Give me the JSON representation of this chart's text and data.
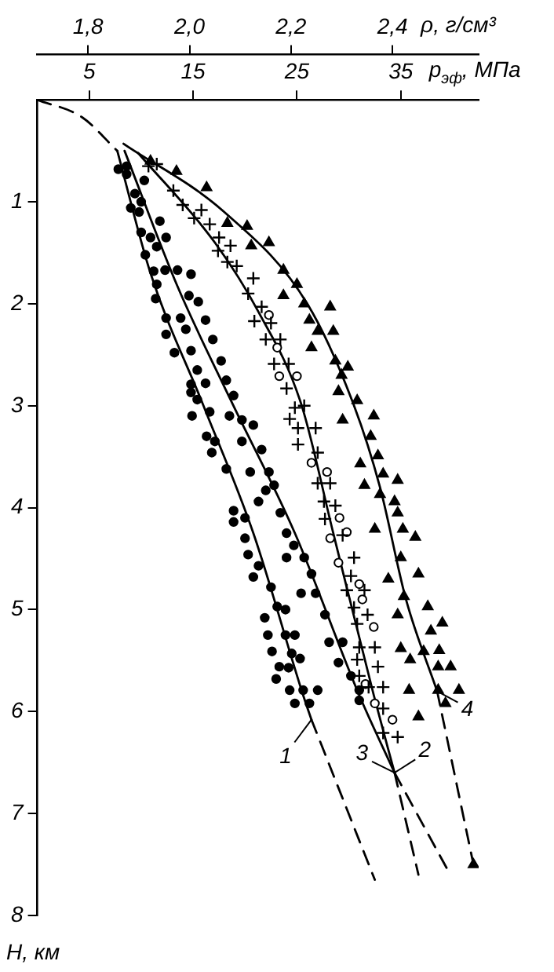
{
  "chart_data": {
    "type": "scatter",
    "xlabel": "p$_{эф}$, МПа",
    "x2label": "ρ, г/см³",
    "ylabel": "H, км",
    "xlim": [
      0,
      42.5
    ],
    "xticks": [
      5,
      15,
      25,
      35
    ],
    "x2lim": [
      1.7,
      2.57
    ],
    "x2ticks": [
      {
        "value": 1.8,
        "label": "1,8"
      },
      {
        "value": 2.0,
        "label": "2,0"
      },
      {
        "value": 2.2,
        "label": "2,2"
      },
      {
        "value": 2.4,
        "label": "2,4"
      }
    ],
    "ylim": [
      8,
      0
    ],
    "yticks": [
      1,
      2,
      3,
      4,
      5,
      6,
      7,
      8
    ],
    "grid": false,
    "legend": "bottom right",
    "series": [
      {
        "type": "scatter",
        "color": "#000000",
        "marker": "circle",
        "x": [
          7.8,
          8.6,
          9.4,
          9.0,
          9.8,
          10.0,
          10.9,
          10.4,
          11.5,
          11.2,
          12.3,
          11.5,
          11.4,
          12.4,
          13.8,
          12.4,
          14.3,
          13.2,
          14.8,
          15.4,
          16.2,
          14.8,
          15.4,
          14.8,
          16.6,
          14.9,
          16.3,
          17.1,
          16.8,
          18.2,
          18.9,
          20.0,
          18.9,
          20.0,
          20.3,
          21.3,
          20.8,
          22.5,
          23.1,
          23.9,
          21.9,
          22.2,
          23.9,
          24.8,
          22.6,
          24.5,
          25.3,
          23.3,
          24.2,
          23.0,
          24.3,
          25.6,
          27.0,
          24.8,
          26.2
        ],
        "values": [
          0.68,
          0.73,
          0.92,
          1.06,
          1.1,
          1.3,
          1.35,
          1.52,
          1.44,
          1.68,
          1.67,
          1.81,
          1.95,
          2.14,
          2.14,
          2.3,
          2.25,
          2.48,
          2.46,
          2.65,
          2.78,
          2.79,
          2.94,
          2.87,
          3.06,
          3.1,
          3.3,
          3.35,
          3.46,
          3.62,
          4.03,
          4.1,
          4.14,
          4.3,
          4.46,
          4.57,
          4.68,
          4.78,
          4.97,
          5.0,
          5.08,
          5.25,
          5.25,
          5.25,
          5.41,
          5.43,
          5.48,
          5.56,
          5.57,
          5.68,
          5.79,
          5.79,
          5.79,
          5.92,
          5.92
        ]
      },
      {
        "type": "scatter",
        "color": "#000000",
        "marker": "circle",
        "x": [
          8.6,
          10.3,
          10.0,
          11.8,
          12.4,
          13.5,
          14.8,
          14.6,
          15.5,
          16.2,
          16.9,
          17.7,
          18.2,
          18.9,
          18.5,
          19.7,
          20.8,
          19.7,
          21.6,
          20.5,
          22.3,
          22.0,
          22.8,
          21.3,
          23.4,
          24.0,
          24.7,
          24.0,
          25.7,
          26.4,
          25.4,
          26.8,
          27.7,
          28.1,
          29.4,
          29.0,
          30.2,
          31.0,
          31.0
        ],
        "values": [
          0.65,
          0.79,
          1.0,
          1.19,
          1.35,
          1.67,
          1.71,
          1.92,
          1.98,
          2.16,
          2.35,
          2.56,
          2.75,
          2.9,
          3.1,
          3.14,
          3.19,
          3.35,
          3.43,
          3.65,
          3.65,
          3.83,
          3.78,
          3.94,
          4.05,
          4.25,
          4.37,
          4.49,
          4.49,
          4.65,
          4.84,
          4.84,
          5.05,
          5.32,
          5.32,
          5.52,
          5.65,
          5.79,
          5.89
        ]
      },
      {
        "type": "scatter",
        "color": "#000000",
        "marker": "cross",
        "x": [
          10.7,
          11.5,
          13.1,
          14.0,
          15.8,
          15.1,
          16.6,
          17.5,
          17.4,
          18.6,
          18.3,
          19.2,
          20.8,
          20.3,
          21.6,
          20.9,
          22.5,
          22.0,
          23.4,
          22.8,
          24.2,
          24.0,
          24.8,
          25.7,
          24.3,
          25.1,
          26.8,
          25.1,
          27.0,
          27.0,
          28.2,
          27.6,
          28.7,
          27.7,
          29.4,
          30.5,
          30.2,
          29.8,
          31.5,
          30.5,
          31.8,
          30.8,
          31.0,
          32.5,
          30.8,
          32.8,
          31.0,
          31.9,
          33.3,
          33.3,
          33.3,
          34.7
        ],
        "values": [
          0.65,
          0.63,
          0.89,
          1.03,
          1.08,
          1.16,
          1.22,
          1.35,
          1.48,
          1.43,
          1.59,
          1.63,
          1.75,
          1.9,
          2.03,
          2.17,
          2.19,
          2.35,
          2.35,
          2.59,
          2.59,
          2.83,
          3.02,
          3.0,
          3.13,
          3.22,
          3.22,
          3.38,
          3.46,
          3.76,
          3.76,
          3.94,
          3.98,
          4.11,
          4.27,
          4.49,
          4.67,
          4.81,
          4.81,
          4.98,
          5.05,
          5.14,
          5.37,
          5.37,
          5.49,
          5.56,
          5.65,
          5.76,
          5.76,
          5.97,
          6.21,
          6.25
        ]
      },
      {
        "type": "scatter",
        "color": "#ffffff",
        "marker": "circle",
        "x": [
          22.3,
          23.1,
          23.3,
          25.0,
          26.4,
          27.9,
          29.1,
          29.8,
          28.2,
          29.0,
          31.0,
          31.3,
          32.4,
          31.6,
          32.5,
          34.2
        ],
        "values": [
          2.11,
          2.43,
          2.71,
          2.71,
          3.56,
          3.65,
          4.1,
          4.24,
          4.3,
          4.54,
          4.75,
          4.9,
          5.17,
          5.73,
          5.92,
          6.08
        ]
      },
      {
        "type": "scatter",
        "color": "#000000",
        "marker": "triangle",
        "x": [
          10.9,
          13.4,
          16.3,
          18.3,
          20.2,
          20.6,
          22.3,
          23.7,
          25.0,
          23.7,
          25.7,
          28.2,
          26.2,
          27.0,
          28.5,
          26.4,
          28.7,
          29.9,
          29.3,
          29.0,
          30.8,
          29.4,
          32.4,
          32.1,
          32.8,
          31.1,
          31.5,
          33.3,
          34.7,
          33.0,
          34.4,
          34.7,
          32.5,
          35.2,
          36.4,
          35.0,
          36.7,
          33.8,
          35.3,
          37.6,
          34.7,
          39.0,
          37.9,
          35.0,
          38.7,
          37.2,
          35.9,
          38.6,
          39.8,
          35.8,
          38.6,
          40.6,
          36.7,
          39.3,
          42.0
        ],
        "values": [
          0.6,
          0.7,
          0.86,
          1.21,
          1.24,
          1.43,
          1.4,
          1.67,
          1.81,
          1.92,
          2.0,
          2.03,
          2.16,
          2.27,
          2.27,
          2.43,
          2.56,
          2.62,
          2.7,
          2.86,
          2.95,
          3.14,
          3.1,
          3.3,
          3.49,
          3.57,
          3.78,
          3.67,
          3.73,
          3.87,
          3.94,
          4.05,
          4.21,
          4.21,
          4.29,
          4.49,
          4.65,
          4.7,
          4.87,
          4.97,
          5.05,
          5.13,
          5.21,
          5.38,
          5.4,
          5.41,
          5.49,
          5.56,
          5.56,
          5.79,
          5.79,
          5.79,
          6.05,
          5.92,
          7.5
        ]
      },
      {
        "type": "line",
        "name": "1",
        "color": "#000000",
        "line_style": "solid",
        "x": [
          7.7,
          10.9,
          16.0,
          20.8,
          25.6,
          26.4
        ],
        "values": [
          0.5,
          1.7,
          3.0,
          4.25,
          5.84,
          6.08
        ]
      },
      {
        "type": "line",
        "color": "#000000",
        "line_style": "dashed",
        "x": [
          26.4,
          32.5
        ],
        "values": [
          6.08,
          7.65
        ]
      },
      {
        "type": "line",
        "name": "2",
        "color": "#000000",
        "line_style": "solid",
        "x": [
          9.7,
          17.1,
          21.3,
          25.4,
          28.5,
          32.4,
          34.4
        ],
        "values": [
          0.52,
          1.4,
          2.08,
          2.98,
          4.25,
          5.84,
          6.6
        ]
      },
      {
        "type": "line",
        "color": "#000000",
        "line_style": "dashed",
        "x": [
          34.4,
          36.7
        ],
        "values": [
          6.6,
          7.6
        ]
      },
      {
        "type": "line",
        "name": "3",
        "color": "#000000",
        "line_style": "solid",
        "x": [
          8.4,
          13.5,
          18.6,
          24.8,
          31.0,
          34.4
        ],
        "values": [
          0.5,
          1.83,
          2.94,
          4.25,
          5.84,
          6.6
        ]
      },
      {
        "type": "line",
        "color": "#000000",
        "line_style": "dashed",
        "x": [
          34.4,
          39.5
        ],
        "values": [
          6.6,
          7.55
        ]
      },
      {
        "type": "line",
        "name": "4",
        "color": "#000000",
        "line_style": "solid",
        "x": [
          8.3,
          18,
          26,
          30.5,
          33,
          35.5,
          38.5
        ],
        "values": [
          0.43,
          1.1,
          2.0,
          3.0,
          3.8,
          4.9,
          5.8
        ]
      },
      {
        "type": "line",
        "color": "#000000",
        "line_style": "dashed",
        "x": [
          38.5,
          42
        ],
        "values": [
          5.8,
          7.5
        ]
      },
      {
        "type": "line",
        "color": "#000000",
        "line_style": "dashed",
        "x": [
          0,
          4.3,
          7.7
        ],
        "values": [
          0,
          0.17,
          0.5
        ]
      }
    ]
  }
}
